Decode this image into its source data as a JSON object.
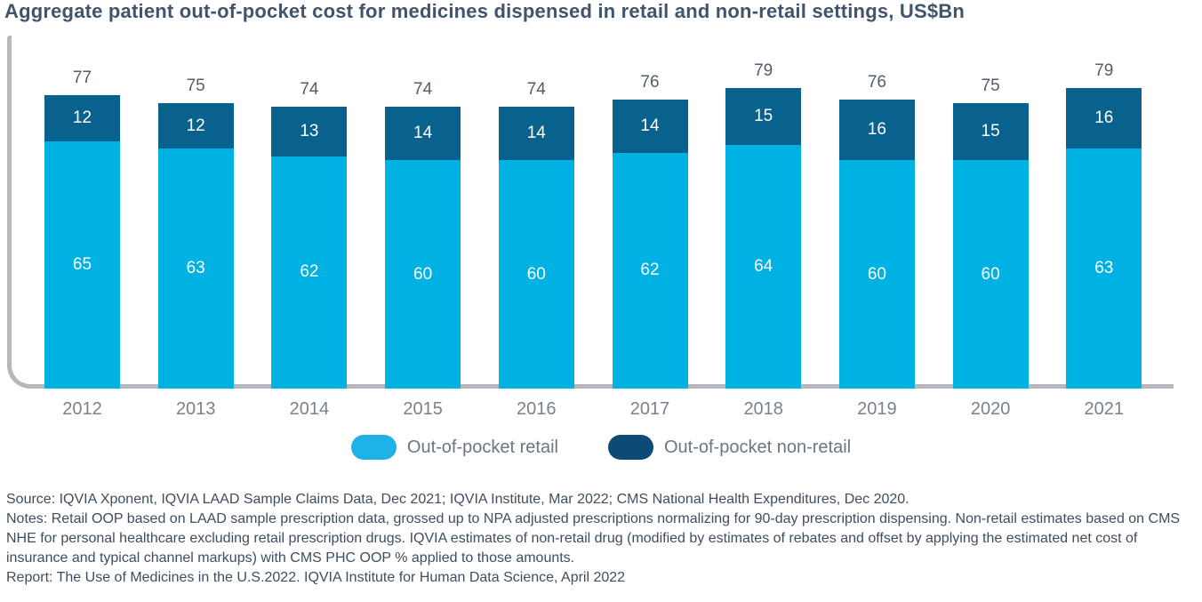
{
  "title": "Aggregate patient out-of-pocket cost for medicines dispensed in retail and non-retail settings, US$Bn",
  "chart_data": {
    "type": "bar",
    "stacked": true,
    "categories": [
      "2012",
      "2013",
      "2014",
      "2015",
      "2016",
      "2017",
      "2018",
      "2019",
      "2020",
      "2021"
    ],
    "series": [
      {
        "name": "Out-of-pocket retail",
        "color": "#00B1E4",
        "values": [
          65,
          63,
          62,
          60,
          60,
          62,
          64,
          60,
          60,
          63
        ]
      },
      {
        "name": "Out-of-pocket non-retail",
        "color": "#09618E",
        "values": [
          12,
          12,
          13,
          14,
          14,
          14,
          15,
          16,
          15,
          16
        ]
      }
    ],
    "totals": [
      77,
      75,
      74,
      74,
      74,
      76,
      79,
      76,
      75,
      79
    ],
    "title": "Aggregate patient out-of-pocket cost for medicines dispensed in retail and non-retail settings, US$Bn",
    "xlabel": "",
    "ylabel": "",
    "ylim": [
      0,
      79
    ],
    "grid": false,
    "legend_position": "bottom",
    "value_labels": "inside-segments-and-total-above"
  },
  "legend": {
    "items": [
      {
        "label": "Out-of-pocket retail",
        "color": "#1FB2E7"
      },
      {
        "label": "Out-of-pocket non-retail",
        "color": "#0E4A76"
      }
    ]
  },
  "footer": {
    "source": "Source: IQVIA Xponent, IQVIA LAAD Sample Claims Data, Dec 2021; IQVIA Institute, Mar 2022; CMS National Health Expenditures, Dec 2020.",
    "notes": "Notes: Retail OOP based on LAAD sample prescription data, grossed up to NPA adjusted prescriptions normalizing for 90-day prescription dispensing. Non-retail estimates based on CMS NHE for personal healthcare excluding retail prescription drugs. IQVIA estimates of non-retail drug (modified by estimates of rebates and offset by applying the estimated net cost of insurance and typical channel markups) with CMS PHC OOP % applied to those amounts.",
    "report": "Report: The Use of Medicines in the U.S.2022. IQVIA Institute for Human Data Science, April 2022"
  },
  "colors": {
    "title_text": "#42546b",
    "axis_line": "#b5b9bf",
    "total_label_text": "#515d6b",
    "segment_label_text": "#ffffff",
    "year_label_text": "#78828e",
    "legend_text": "#6b7682",
    "footer_text": "#3e4e5f"
  }
}
